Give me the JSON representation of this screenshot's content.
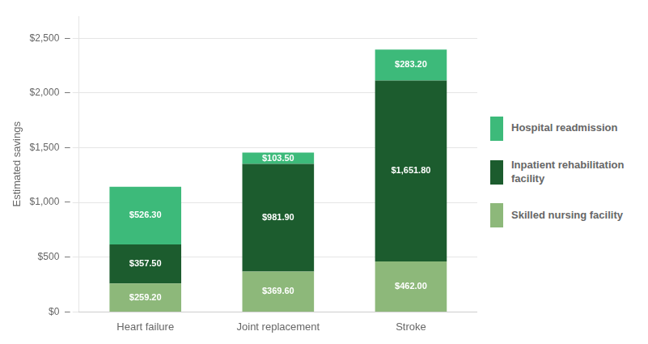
{
  "chart_data": {
    "type": "bar",
    "stacked": true,
    "categories": [
      "Heart failure",
      "Joint replacement",
      "Stroke"
    ],
    "ylabel": "Estimated savings",
    "ylim": [
      0,
      2700
    ],
    "yticks": [
      {
        "value": 0,
        "label": "$0  –"
      },
      {
        "value": 500,
        "label": "$500  –"
      },
      {
        "value": 1000,
        "label": "$1,000  –"
      },
      {
        "value": 1500,
        "label": "$1,500  –"
      },
      {
        "value": 2000,
        "label": "$2,000  –"
      },
      {
        "value": 2500,
        "label": "$2,500  –"
      }
    ],
    "grid": true,
    "legend": "right",
    "data_labels": true,
    "series": [
      {
        "name": "Skilled nursing facility",
        "color": "#8db87a",
        "values": [
          259.2,
          369.6,
          462.0
        ],
        "value_labels": [
          "$259.20",
          "$369.60",
          "$462.00"
        ]
      },
      {
        "name": "Inpatient rehabilitation\nfacility",
        "color": "#1c5c2e",
        "values": [
          357.5,
          981.9,
          1651.8
        ],
        "value_labels": [
          "$357.50",
          "$981.90",
          "$1,651.80"
        ]
      },
      {
        "name": "Hospital readmission",
        "color": "#3dba7a",
        "values": [
          526.3,
          103.5,
          283.2
        ],
        "value_labels": [
          "$526.30",
          "$103.50",
          "$283.20"
        ]
      }
    ]
  }
}
